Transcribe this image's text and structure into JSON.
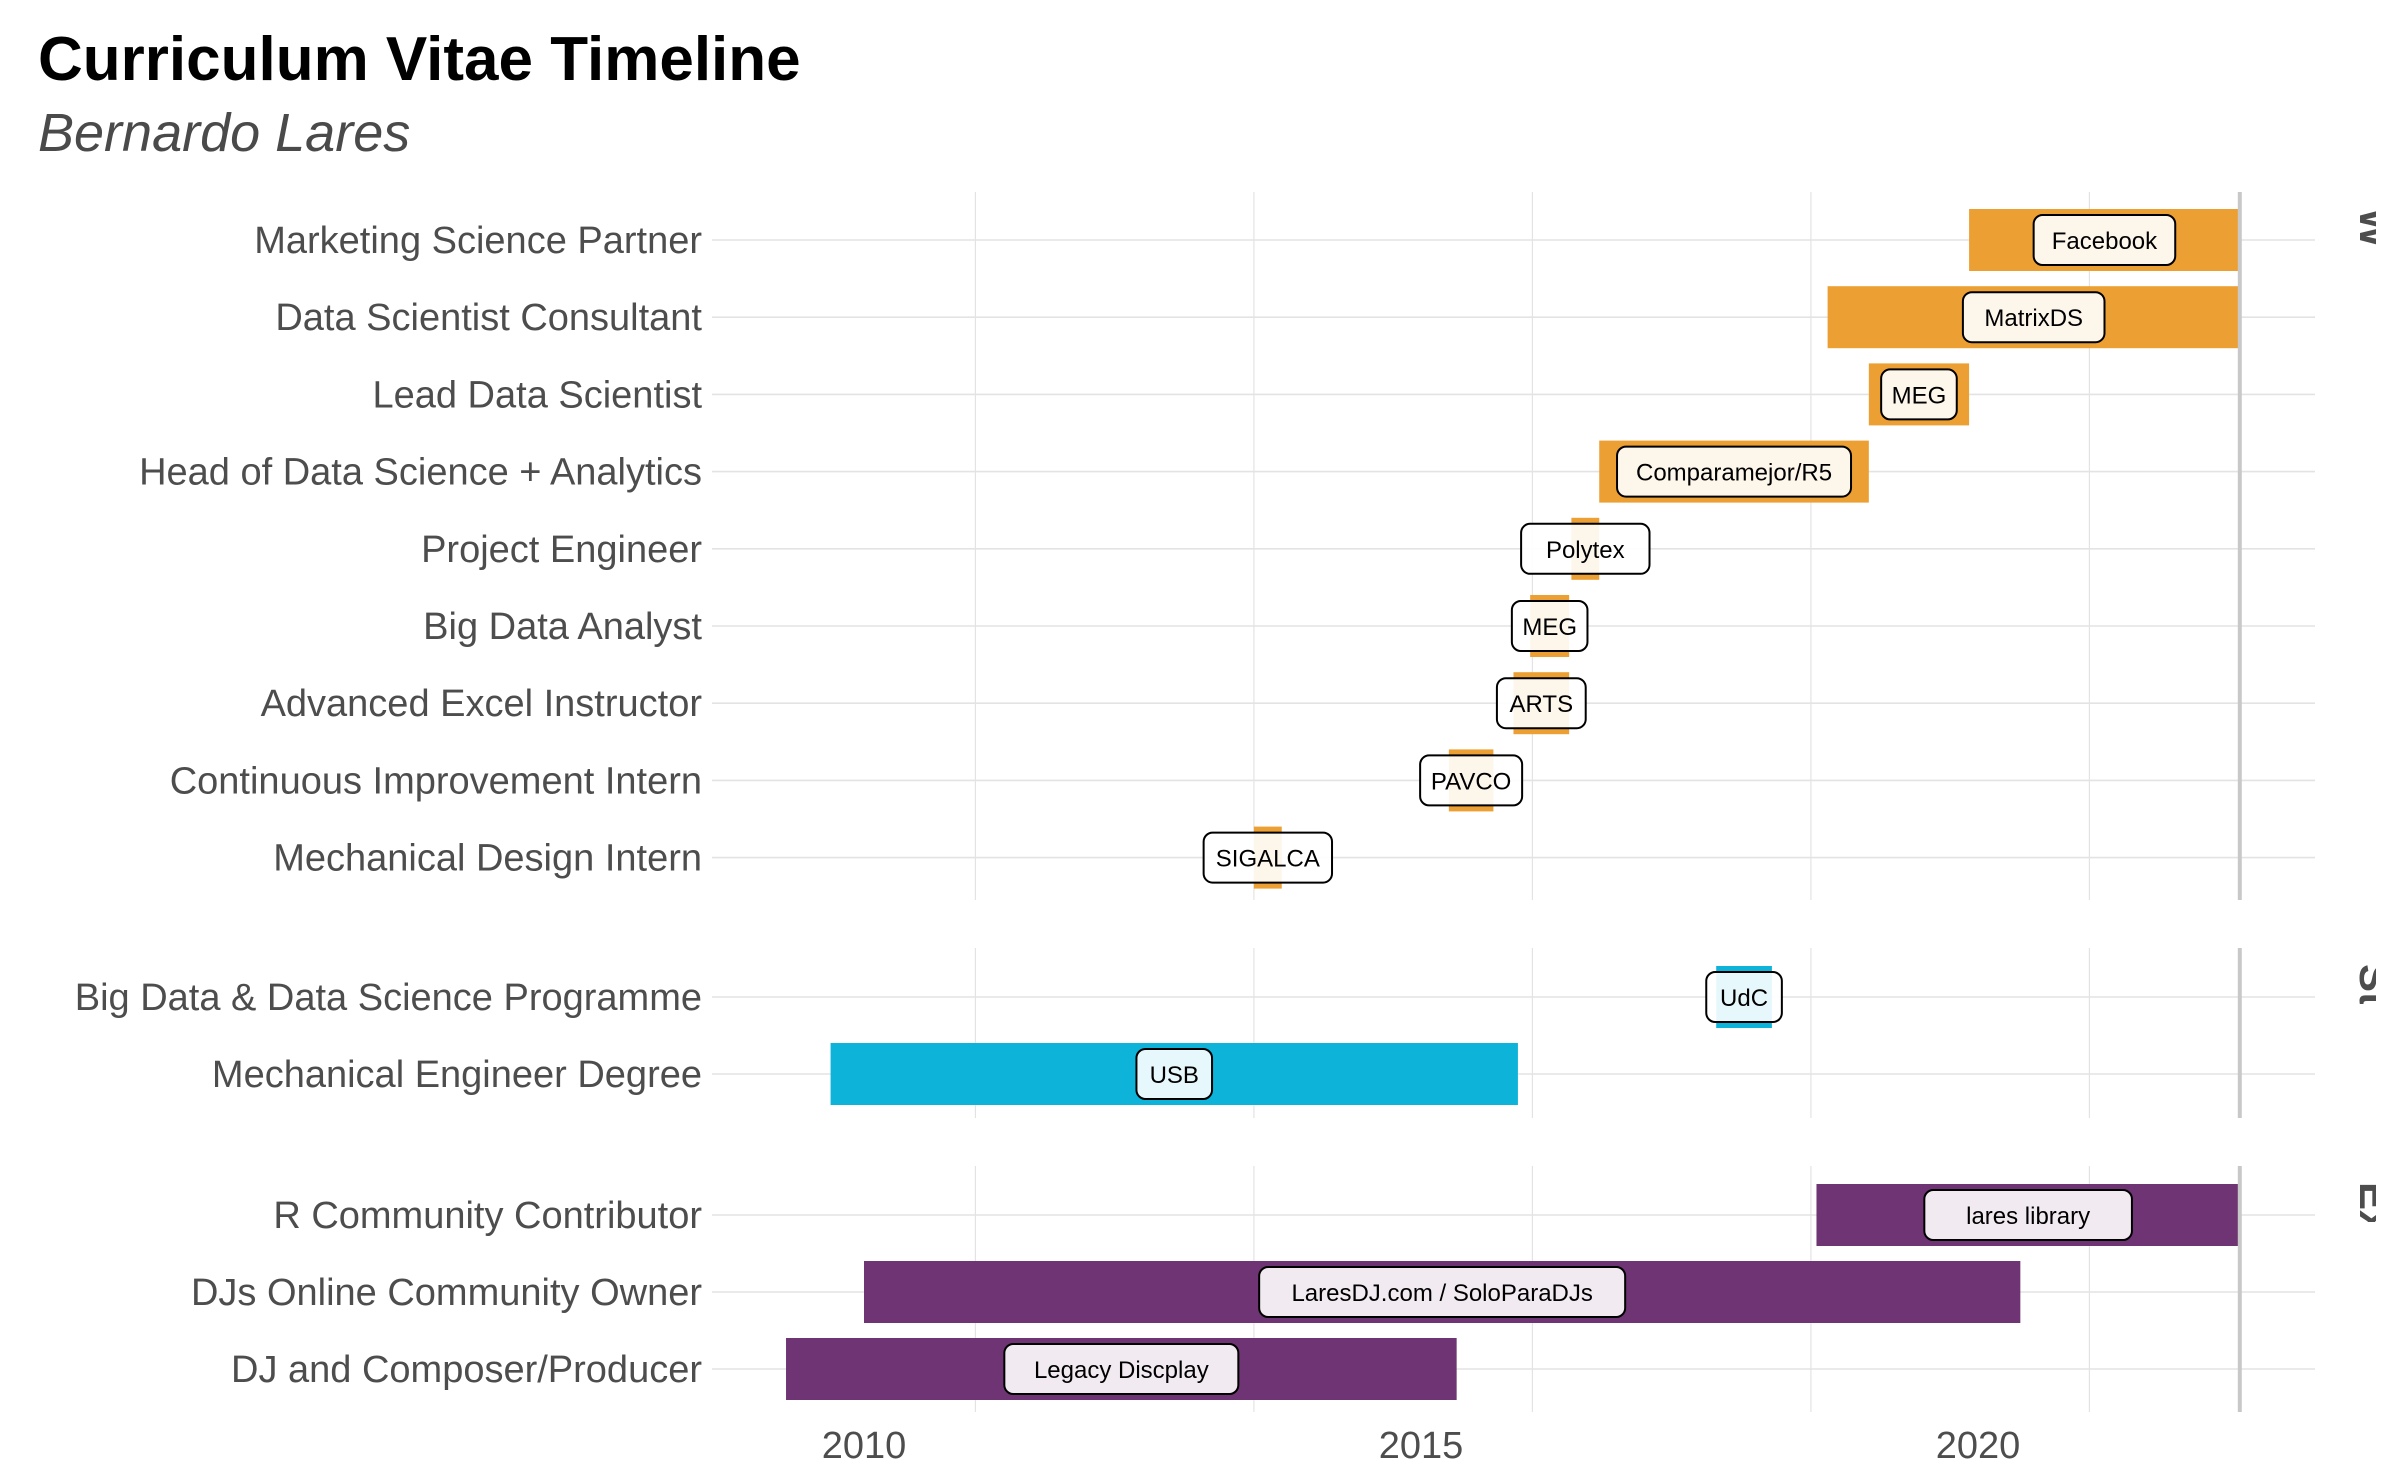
{
  "chart_data": {
    "type": "timeline",
    "title": "Curriculum Vitae Timeline",
    "subtitle": "Bernardo Lares",
    "x_ticks": [
      2010,
      2015,
      2020
    ],
    "xlim": [
      2008.6,
      2023.0
    ],
    "today": 2022.35,
    "colors": {
      "Work Experience": "#EC9F33",
      "Studies": "#0DB3D9",
      "Extra": "#6F3473"
    },
    "panels": [
      {
        "name": "Work Experience",
        "items": [
          {
            "role": "Marketing Science Partner",
            "place": "Facebook",
            "start": 2019.92,
            "end": 2022.35
          },
          {
            "role": "Data Scientist Consultant",
            "place": "MatrixDS",
            "start": 2018.65,
            "end": 2022.35
          },
          {
            "role": "Lead Data Scientist",
            "place": "MEG",
            "start": 2019.02,
            "end": 2019.92
          },
          {
            "role": "Head of Data Science + Analytics",
            "place": "Comparamejor/R5",
            "start": 2016.6,
            "end": 2019.02
          },
          {
            "role": "Project Engineer",
            "place": "Polytex",
            "start": 2016.35,
            "end": 2016.6
          },
          {
            "role": "Big Data Analyst",
            "place": "MEG",
            "start": 2015.98,
            "end": 2016.33
          },
          {
            "role": "Advanced Excel Instructor",
            "place": "ARTS",
            "start": 2015.83,
            "end": 2016.33
          },
          {
            "role": "Continuous Improvement Intern",
            "place": "PAVCO",
            "start": 2015.25,
            "end": 2015.65
          },
          {
            "role": "Mechanical Design Intern",
            "place": "SIGALCA",
            "start": 2013.5,
            "end": 2013.75
          }
        ]
      },
      {
        "name": "Studies",
        "items": [
          {
            "role": "Big Data & Data Science Programme",
            "place": "UdC",
            "start": 2017.65,
            "end": 2018.15
          },
          {
            "role": "Mechanical Engineer Degree",
            "place": "USB",
            "start": 2009.7,
            "end": 2015.87
          }
        ]
      },
      {
        "name": "Extra",
        "items": [
          {
            "role": "R Community Contributor",
            "place": "lares library",
            "start": 2018.55,
            "end": 2022.35
          },
          {
            "role": "DJs Online Community Owner",
            "place": "LaresDJ.com / SoloParaDJs",
            "start": 2010.0,
            "end": 2020.38
          },
          {
            "role": "DJ and Composer/Producer",
            "place": "Legacy Discplay",
            "start": 2009.3,
            "end": 2015.32
          }
        ]
      }
    ]
  }
}
